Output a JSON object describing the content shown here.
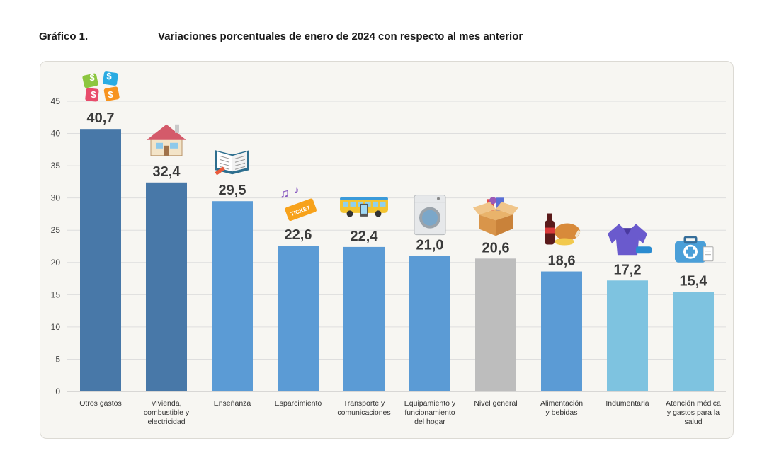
{
  "header": {
    "label": "Gráfico 1.",
    "title": "Variaciones porcentuales de enero de 2024 con respecto al mes anterior"
  },
  "chart_data": {
    "type": "bar",
    "categories": [
      "Otros gastos",
      "Vivienda, combustible y electricidad",
      "Enseñanza",
      "Esparcimiento",
      "Transporte y comunicaciones",
      "Equipamiento y funcionamiento del hogar",
      "Nivel general",
      "Alimentación y bebidas",
      "Indumentaria",
      "Atención médica y gastos para la salud"
    ],
    "category_lines": [
      [
        "Otros gastos"
      ],
      [
        "Vivienda,",
        "combustible y",
        "electricidad"
      ],
      [
        "Enseñanza"
      ],
      [
        "Esparcimiento"
      ],
      [
        "Transporte y",
        "comunicaciones"
      ],
      [
        "Equipamiento y",
        "funcionamiento",
        "del hogar"
      ],
      [
        "Nivel general"
      ],
      [
        "Alimentación",
        "y bebidas"
      ],
      [
        "Indumentaria"
      ],
      [
        "Atención médica",
        "y gastos para la",
        "salud"
      ]
    ],
    "values": [
      40.7,
      32.4,
      29.5,
      22.6,
      22.4,
      21.0,
      20.6,
      18.6,
      17.2,
      15.4
    ],
    "value_labels": [
      "40,7",
      "32,4",
      "29,5",
      "22,6",
      "22,4",
      "21,0",
      "20,6",
      "18,6",
      "17,2",
      "15,4"
    ],
    "colors": [
      "#4878a8",
      "#4878a8",
      "#5b9bd5",
      "#5b9bd5",
      "#5b9bd5",
      "#5b9bd5",
      "#bdbdbd",
      "#5b9bd5",
      "#7ec3e0",
      "#7ec3e0"
    ],
    "icons": [
      "money-puzzle-icon",
      "house-icon",
      "book-icon",
      "ticket-music-icon",
      "bus-icon",
      "washing-machine-icon",
      "box-icon",
      "food-drink-icon",
      "clothes-icon",
      "first-aid-kit-icon"
    ],
    "yticks": [
      0,
      5,
      10,
      15,
      20,
      25,
      30,
      35,
      40,
      45
    ],
    "ylim": [
      0,
      45
    ],
    "grid": true,
    "xlabel": "",
    "ylabel": ""
  }
}
